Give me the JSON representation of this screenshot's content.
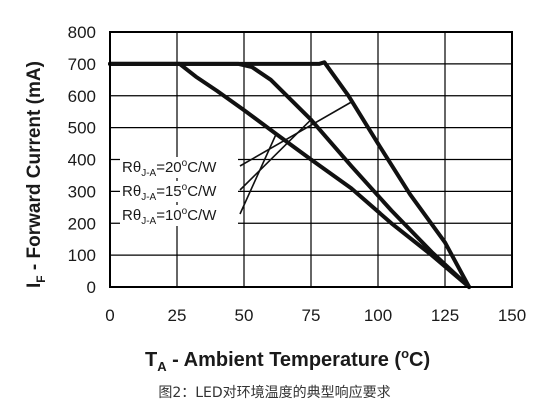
{
  "chart_data": {
    "type": "line",
    "xlabel": {
      "main": "T",
      "sub": "A",
      "rest": " - Ambient Temperature (",
      "sup": "o",
      "unit": "C)"
    },
    "ylabel": {
      "main": "I",
      "sub": "F",
      "rest": " - Forward Current (mA)"
    },
    "xlim": [
      0,
      150
    ],
    "ylim": [
      0,
      800
    ],
    "x_ticks": [
      "0",
      "25",
      "50",
      "75",
      "100",
      "125",
      "150"
    ],
    "y_ticks": [
      "0",
      "100",
      "200",
      "300",
      "400",
      "500",
      "600",
      "700",
      "800"
    ],
    "grid": true,
    "series": [
      {
        "name": "RθJ-A=20°C/W",
        "x": [
          0,
          78,
          80,
          89,
          100,
          112,
          125,
          134
        ],
        "y": [
          700,
          700,
          705,
          600,
          450,
          290,
          140,
          0
        ]
      },
      {
        "name": "RθJ-A=15°C/W",
        "x": [
          0,
          48,
          53,
          60,
          75,
          90,
          105,
          120,
          134
        ],
        "y": [
          700,
          700,
          690,
          650,
          525,
          380,
          240,
          110,
          0
        ]
      },
      {
        "name": "RθJ-A=10°C/W",
        "x": [
          0,
          26,
          32,
          40,
          50,
          62,
          75,
          90,
          105,
          120,
          134
        ],
        "y": [
          700,
          700,
          660,
          615,
          555,
          480,
          400,
          310,
          200,
          100,
          0
        ]
      }
    ],
    "legend": [
      {
        "pre": "Rθ",
        "sub": "J-A",
        "post": "=20",
        "sup": "o",
        "unit": "C/W"
      },
      {
        "pre": "Rθ",
        "sub": "J-A",
        "post": "=15",
        "sup": "o",
        "unit": "C/W"
      },
      {
        "pre": "Rθ",
        "sub": "J-A",
        "post": "=10",
        "sup": "o",
        "unit": "C/W"
      }
    ],
    "legend_pointer_targets": [
      {
        "x": 90,
        "y": 580
      },
      {
        "x": 75,
        "y": 525
      },
      {
        "x": 62,
        "y": 480
      }
    ]
  },
  "caption": "图2：LED对环境温度的典型响应要求"
}
